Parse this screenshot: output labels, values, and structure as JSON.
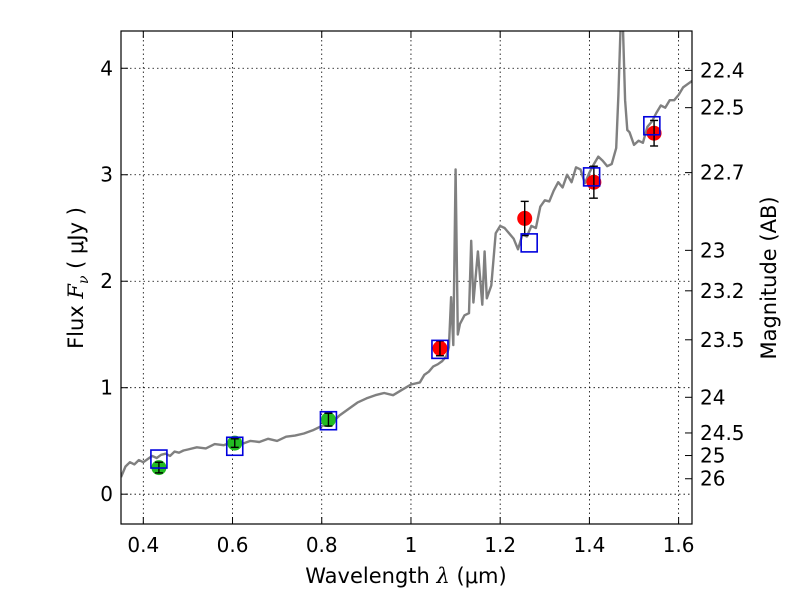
{
  "chart_data": {
    "type": "scatter",
    "xlabel": {
      "prefix": "Wavelength  ",
      "symbol": "λ",
      "units": " (μm)"
    },
    "ylabel": {
      "prefix": "Flux  ",
      "symbol": "F",
      "sub": "ν",
      "units": "  ( μJy )"
    },
    "y2label": "Magnitude (AB)",
    "xlim": [
      0.35,
      1.63
    ],
    "ylim": [
      -0.28,
      4.35
    ],
    "grid": true,
    "x_ticks": [
      0.4,
      0.6,
      0.8,
      1.0,
      1.2,
      1.4,
      1.6
    ],
    "x_tick_labels": [
      "0.4",
      "0.6",
      "0.8",
      "1",
      "1.2",
      "1.4",
      "1.6"
    ],
    "y_ticks": [
      0,
      1,
      2,
      3,
      4
    ],
    "y_tick_labels": [
      "0",
      "1",
      "2",
      "3",
      "4"
    ],
    "magnitude_ticks": [
      {
        "label": "22.4",
        "flux": 3.98
      },
      {
        "label": "22.5",
        "flux": 3.63
      },
      {
        "label": "22.7",
        "flux": 3.02
      },
      {
        "label": "23",
        "flux": 2.29
      },
      {
        "label": "23.2",
        "flux": 1.91
      },
      {
        "label": "23.5",
        "flux": 1.45
      },
      {
        "label": "24",
        "flux": 0.91
      },
      {
        "label": "24.5",
        "flux": 0.575
      },
      {
        "label": "25",
        "flux": 0.363
      },
      {
        "label": "26",
        "flux": 0.145
      }
    ],
    "spectrum": {
      "color": "#808080",
      "x": [
        0.35,
        0.36,
        0.37,
        0.38,
        0.39,
        0.4,
        0.41,
        0.42,
        0.43,
        0.44,
        0.45,
        0.46,
        0.47,
        0.48,
        0.49,
        0.5,
        0.52,
        0.54,
        0.56,
        0.58,
        0.6,
        0.62,
        0.64,
        0.66,
        0.68,
        0.7,
        0.72,
        0.74,
        0.76,
        0.78,
        0.8,
        0.82,
        0.84,
        0.86,
        0.88,
        0.9,
        0.92,
        0.94,
        0.96,
        0.98,
        1.0,
        1.02,
        1.03,
        1.04,
        1.05,
        1.06,
        1.07,
        1.08,
        1.085,
        1.09,
        1.095,
        1.1,
        1.105,
        1.11,
        1.12,
        1.13,
        1.135,
        1.14,
        1.15,
        1.16,
        1.165,
        1.17,
        1.18,
        1.19,
        1.2,
        1.21,
        1.22,
        1.23,
        1.24,
        1.25,
        1.26,
        1.27,
        1.28,
        1.29,
        1.3,
        1.31,
        1.32,
        1.33,
        1.34,
        1.35,
        1.36,
        1.37,
        1.38,
        1.39,
        1.4,
        1.41,
        1.42,
        1.43,
        1.44,
        1.45,
        1.46,
        1.465,
        1.47,
        1.475,
        1.48,
        1.485,
        1.49,
        1.5,
        1.51,
        1.52,
        1.53,
        1.54,
        1.55,
        1.56,
        1.57,
        1.58,
        1.59,
        1.6,
        1.61,
        1.62,
        1.63
      ],
      "y": [
        0.16,
        0.26,
        0.3,
        0.28,
        0.32,
        0.3,
        0.33,
        0.36,
        0.34,
        0.37,
        0.38,
        0.36,
        0.4,
        0.39,
        0.41,
        0.42,
        0.44,
        0.43,
        0.47,
        0.46,
        0.49,
        0.47,
        0.5,
        0.49,
        0.52,
        0.5,
        0.54,
        0.55,
        0.57,
        0.6,
        0.64,
        0.66,
        0.74,
        0.8,
        0.86,
        0.9,
        0.93,
        0.95,
        0.93,
        0.98,
        1.03,
        1.05,
        1.12,
        1.15,
        1.2,
        1.22,
        1.25,
        1.3,
        1.38,
        1.85,
        1.4,
        3.05,
        1.5,
        1.6,
        1.68,
        1.7,
        2.38,
        1.8,
        2.28,
        1.78,
        2.28,
        1.84,
        1.96,
        2.45,
        2.52,
        2.5,
        2.45,
        2.4,
        2.3,
        2.44,
        2.42,
        2.52,
        2.5,
        2.7,
        2.76,
        2.75,
        2.85,
        2.93,
        2.88,
        3.0,
        2.93,
        3.07,
        3.05,
        2.92,
        3.02,
        3.1,
        3.17,
        3.13,
        3.08,
        3.1,
        3.25,
        3.75,
        4.4,
        4.4,
        3.7,
        3.42,
        3.4,
        3.28,
        3.32,
        3.3,
        3.45,
        3.5,
        3.58,
        3.65,
        3.63,
        3.7,
        3.7,
        3.75,
        3.82,
        3.85,
        3.88
      ]
    },
    "series": [
      {
        "marker": "circle",
        "color": "#22bb22",
        "points": [
          {
            "x": 0.435,
            "y": 0.25,
            "err": 0.05
          },
          {
            "x": 0.605,
            "y": 0.48,
            "err": 0.04
          },
          {
            "x": 0.815,
            "y": 0.7,
            "err": 0.06
          }
        ]
      },
      {
        "marker": "circle",
        "color": "#ff0000",
        "points": [
          {
            "x": 1.065,
            "y": 1.37,
            "err": 0.07
          },
          {
            "x": 1.255,
            "y": 2.59,
            "err": 0.16
          },
          {
            "x": 1.41,
            "y": 2.93,
            "err": 0.15
          },
          {
            "x": 1.545,
            "y": 3.39,
            "err": 0.12
          }
        ]
      },
      {
        "marker": "open-square",
        "color": "#0000dd",
        "points": [
          {
            "x": 0.435,
            "y": 0.33
          },
          {
            "x": 0.605,
            "y": 0.45
          },
          {
            "x": 0.815,
            "y": 0.69
          },
          {
            "x": 1.065,
            "y": 1.36
          },
          {
            "x": 1.265,
            "y": 2.36
          },
          {
            "x": 1.405,
            "y": 2.98
          },
          {
            "x": 1.54,
            "y": 3.46
          }
        ]
      }
    ]
  }
}
